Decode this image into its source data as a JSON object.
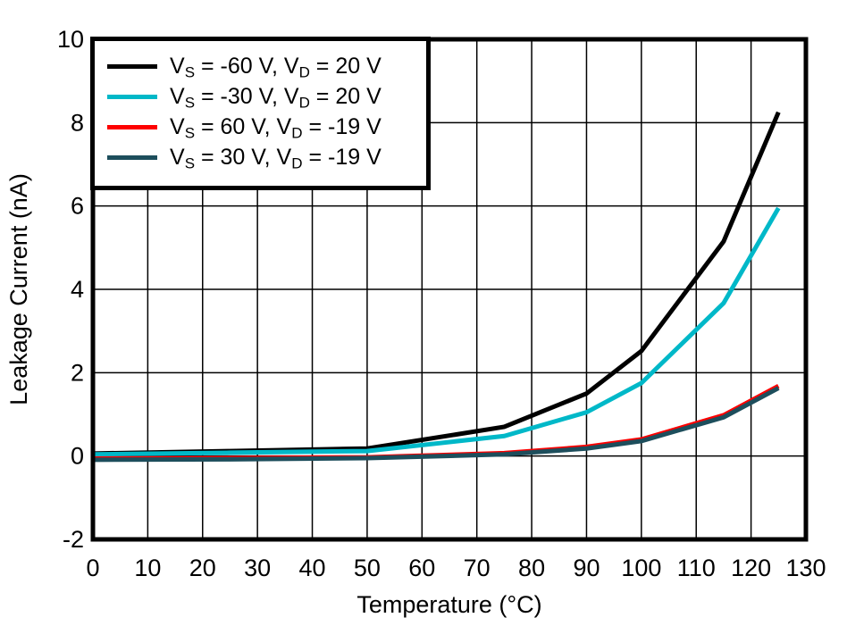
{
  "figure": {
    "background_color": "#ffffff",
    "frame_color": "#000000",
    "grid_color": "#000000"
  },
  "chart_data": {
    "type": "line",
    "title": "",
    "xlabel": "Temperature (°C)",
    "ylabel": "Leakage Current (nA)",
    "xlim": [
      0,
      130
    ],
    "ylim": [
      -2,
      10
    ],
    "x_ticks": [
      0,
      10,
      20,
      30,
      40,
      50,
      60,
      70,
      80,
      90,
      100,
      110,
      120,
      130
    ],
    "y_ticks": [
      -2,
      0,
      2,
      4,
      6,
      8,
      10
    ],
    "grid": true,
    "legend_position": "top-left",
    "x": [
      0,
      25,
      50,
      75,
      90,
      100,
      115,
      125
    ],
    "series": [
      {
        "name": "VS = -60 V, VD = 20 V",
        "legend": {
          "base1": "V",
          "sub1": "S",
          "mid": " = -60 V, V",
          "sub2": "D",
          "tail": " = 20 V"
        },
        "color": "#000000",
        "values": [
          0.06,
          0.12,
          0.18,
          0.7,
          1.5,
          2.52,
          5.15,
          8.25
        ]
      },
      {
        "name": "VS = -30 V, VD = 20 V",
        "legend": {
          "base1": "V",
          "sub1": "S",
          "mid": " = -30 V, V",
          "sub2": "D",
          "tail": " = 20 V"
        },
        "color": "#00b8c8",
        "values": [
          0.04,
          0.08,
          0.12,
          0.48,
          1.05,
          1.75,
          3.67,
          5.95
        ]
      },
      {
        "name": "VS = 60 V, VD = -19 V",
        "legend": {
          "base1": "V",
          "sub1": "S",
          "mid": " = 60 V, V",
          "sub2": "D",
          "tail": " = -19 V"
        },
        "color": "#fe0000",
        "values": [
          -0.06,
          -0.05,
          -0.03,
          0.07,
          0.22,
          0.4,
          0.98,
          1.68
        ]
      },
      {
        "name": "VS = 30 V, VD = -19 V",
        "legend": {
          "base1": "V",
          "sub1": "S",
          "mid": " = 30 V, V",
          "sub2": "D",
          "tail": " = -19 V"
        },
        "color": "#1d4e5c",
        "values": [
          -0.09,
          -0.08,
          -0.05,
          0.04,
          0.18,
          0.36,
          0.93,
          1.63
        ]
      }
    ]
  }
}
